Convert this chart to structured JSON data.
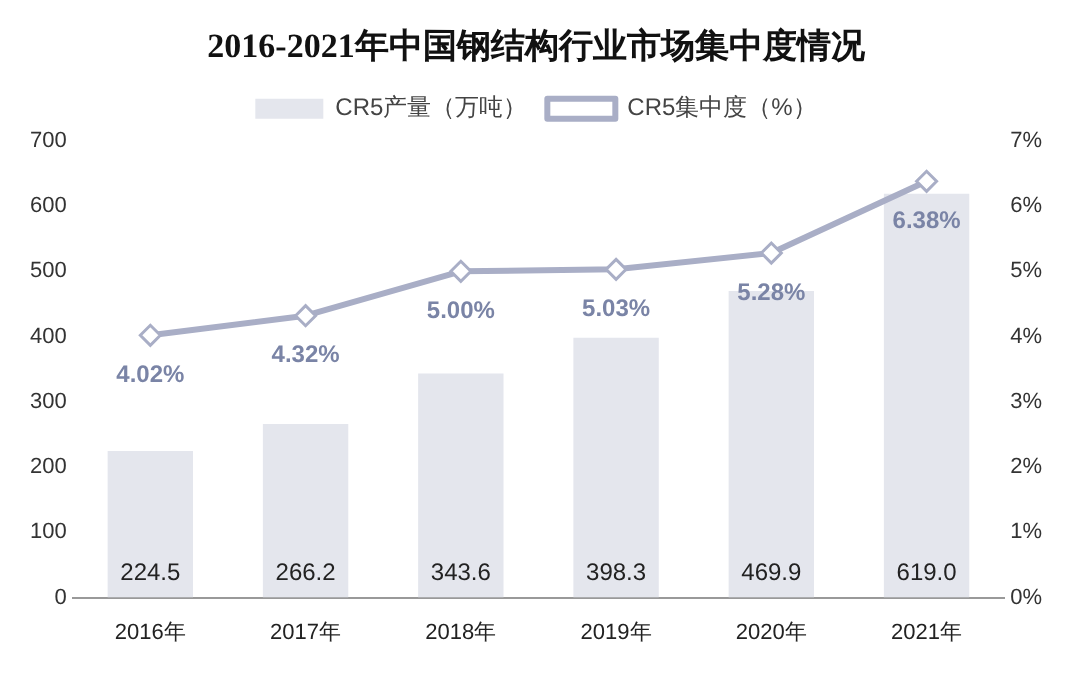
{
  "chart_data": {
    "type": "bar",
    "title": "2016-2021年中国钢结构行业市场集中度情况",
    "categories": [
      "2016年",
      "2017年",
      "2018年",
      "2019年",
      "2020年",
      "2021年"
    ],
    "series": [
      {
        "name": "CR5产量（万吨）",
        "color": "#e4e6ed",
        "values": [
          224.5,
          266.2,
          343.6,
          398.3,
          469.9,
          619.0
        ],
        "value_labels": [
          "224.5",
          "266.2",
          "343.6",
          "398.3",
          "469.9",
          "619.0"
        ]
      },
      {
        "name": "CR5集中度（%）",
        "type": "line",
        "axis": "y2",
        "color": "#a9aec6",
        "marker": "diamond",
        "values": [
          4.02,
          4.32,
          5.0,
          5.03,
          5.28,
          6.38
        ],
        "value_labels": [
          "4.02%",
          "4.32%",
          "5.00%",
          "5.03%",
          "5.28%",
          "6.38%"
        ]
      }
    ],
    "ylim": [
      0,
      700
    ],
    "yticks": [
      0,
      100,
      200,
      300,
      400,
      500,
      600,
      700
    ],
    "y2lim": [
      0,
      7
    ],
    "y2ticks": [
      {
        "value": 0,
        "label": "0%"
      },
      {
        "value": 1,
        "label": "1%"
      },
      {
        "value": 2,
        "label": "2%"
      },
      {
        "value": 3,
        "label": "3%"
      },
      {
        "value": 4,
        "label": "4%"
      },
      {
        "value": 5,
        "label": "5%"
      },
      {
        "value": 6,
        "label": "6%"
      },
      {
        "value": 7,
        "label": "7%"
      }
    ],
    "legend": "top",
    "grid": false
  }
}
